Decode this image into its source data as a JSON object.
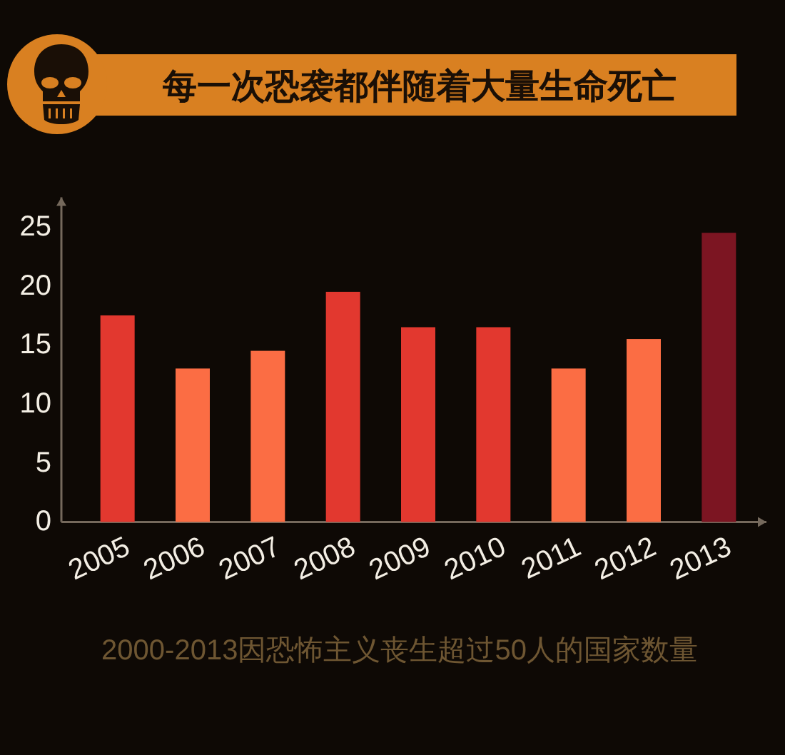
{
  "chart_data": {
    "type": "bar",
    "title": "每一次恐袭都伴随着大量生命死亡",
    "categories": [
      "2005",
      "2006",
      "2007",
      "2008",
      "2009",
      "2010",
      "2011",
      "2012",
      "2013"
    ],
    "values": [
      17.5,
      13,
      14.5,
      19.5,
      16.5,
      16.5,
      13,
      15.5,
      24.5
    ],
    "colors": [
      "#e2382f",
      "#fb6d44",
      "#fb6d44",
      "#e2382f",
      "#e2382f",
      "#e2382f",
      "#fb6d44",
      "#fb6d44",
      "#7c1522"
    ],
    "ylim": [
      0,
      27.5
    ],
    "yticks": [
      0,
      5,
      10,
      15,
      20,
      25
    ],
    "annotations": [
      "2000-2013因恐怖主义丧生超过50人的国家数量"
    ]
  }
}
